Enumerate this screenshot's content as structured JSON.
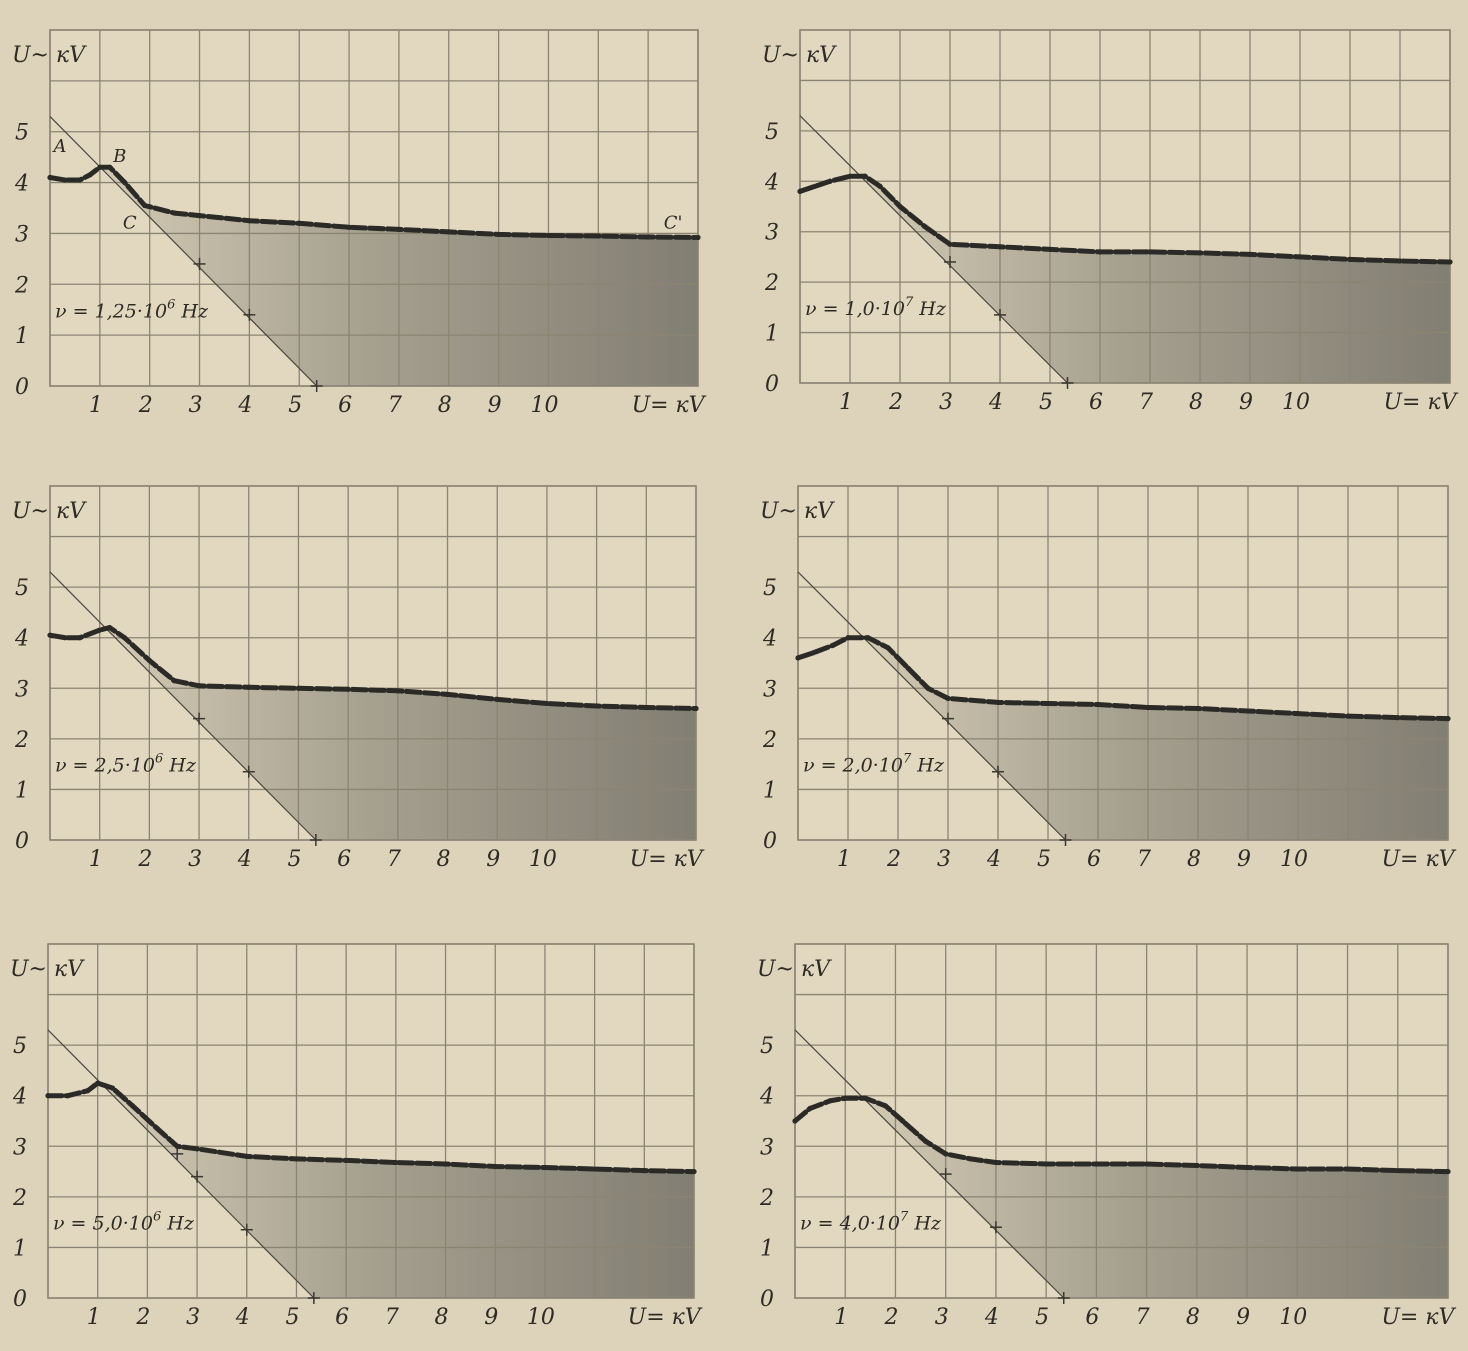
{
  "figure": {
    "colors": {
      "paper": "#ddd3ba",
      "grid": "#8c8473",
      "curve": "#2b2a27",
      "shade": "#5c5b55",
      "ink": "#2e2a24"
    },
    "panels": [
      {
        "freq_prefix": "ν = 1,25·10",
        "freq_exp": "6",
        "freq_unit": " Hz",
        "point_labels": [
          {
            "text": "A",
            "x": 0.2,
            "y": 4.6
          },
          {
            "text": "B",
            "x": 1.4,
            "y": 4.4
          },
          {
            "text": "C",
            "x": 1.6,
            "y": 3.1
          },
          {
            "text": "C'",
            "x": 12.5,
            "y": 3.1
          }
        ]
      },
      {
        "freq_prefix": "ν = 1,0·10",
        "freq_exp": "7",
        "freq_unit": " Hz",
        "point_labels": []
      },
      {
        "freq_prefix": "ν = 2,5·10",
        "freq_exp": "6",
        "freq_unit": " Hz",
        "point_labels": []
      },
      {
        "freq_prefix": "ν = 2,0·10",
        "freq_exp": "7",
        "freq_unit": " Hz",
        "point_labels": []
      },
      {
        "freq_prefix": "ν = 5,0·10",
        "freq_exp": "6",
        "freq_unit": " Hz",
        "point_labels": []
      },
      {
        "freq_prefix": "ν = 4,0·10",
        "freq_exp": "7",
        "freq_unit": " Hz",
        "point_labels": []
      }
    ]
  },
  "chart_data": [
    {
      "type": "line",
      "frequency": "1,25·10^6 Hz",
      "xlabel": "U= кV",
      "ylabel": "U~ кV",
      "xlim": [
        0,
        13
      ],
      "ylim": [
        0,
        7
      ],
      "x_ticks": [
        "1",
        "2",
        "3",
        "4",
        "5",
        "6",
        "7",
        "8",
        "9",
        "10"
      ],
      "y_ticks": [
        "0",
        "1",
        "2",
        "3",
        "4",
        "5"
      ],
      "grid": true,
      "curve": {
        "x": [
          0,
          0.3,
          0.6,
          0.8,
          1,
          1.2,
          1.5,
          1.9,
          2.5,
          3,
          4,
          5,
          6,
          7,
          8,
          9,
          10,
          11,
          12,
          13
        ],
        "y": [
          4.1,
          4.05,
          4.05,
          4.15,
          4.3,
          4.3,
          4.0,
          3.55,
          3.4,
          3.35,
          3.25,
          3.2,
          3.12,
          3.08,
          3.03,
          2.98,
          2.96,
          2.95,
          2.93,
          2.92
        ]
      },
      "load_line": {
        "x": [
          0,
          3,
          4,
          5.35
        ],
        "y": [
          5.3,
          2.4,
          1.4,
          0.0
        ]
      }
    },
    {
      "type": "line",
      "frequency": "1,0·10^7 Hz",
      "xlabel": "U= кV",
      "ylabel": "U~ кV",
      "xlim": [
        0,
        13
      ],
      "ylim": [
        0,
        7
      ],
      "x_ticks": [
        "1",
        "2",
        "3",
        "4",
        "5",
        "6",
        "7",
        "8",
        "9",
        "10"
      ],
      "y_ticks": [
        "0",
        "1",
        "2",
        "3",
        "4",
        "5"
      ],
      "grid": true,
      "curve": {
        "x": [
          0,
          0.3,
          0.6,
          1,
          1.3,
          1.6,
          2,
          2.5,
          3,
          4,
          5,
          6,
          7,
          8,
          9,
          10,
          11,
          12,
          13
        ],
        "y": [
          3.8,
          3.9,
          4.0,
          4.1,
          4.1,
          3.9,
          3.5,
          3.1,
          2.75,
          2.7,
          2.65,
          2.6,
          2.6,
          2.58,
          2.55,
          2.5,
          2.45,
          2.42,
          2.4
        ]
      },
      "load_line": {
        "x": [
          0,
          3,
          4,
          5.35
        ],
        "y": [
          5.3,
          2.4,
          1.35,
          0.0
        ]
      }
    },
    {
      "type": "line",
      "frequency": "2,5·10^6 Hz",
      "xlabel": "U= кV",
      "ylabel": "U~ кV",
      "xlim": [
        0,
        13
      ],
      "ylim": [
        0,
        7
      ],
      "x_ticks": [
        "1",
        "2",
        "3",
        "4",
        "5",
        "6",
        "7",
        "8",
        "9",
        "10"
      ],
      "y_ticks": [
        "0",
        "1",
        "2",
        "3",
        "4",
        "5"
      ],
      "grid": true,
      "curve": {
        "x": [
          0,
          0.3,
          0.6,
          1,
          1.2,
          1.5,
          2,
          2.5,
          3,
          4,
          5,
          6,
          7,
          8,
          9,
          10,
          11,
          12,
          13
        ],
        "y": [
          4.05,
          4.0,
          4.0,
          4.15,
          4.2,
          4.0,
          3.55,
          3.15,
          3.05,
          3.02,
          3.0,
          2.98,
          2.95,
          2.88,
          2.78,
          2.7,
          2.65,
          2.62,
          2.6
        ]
      },
      "load_line": {
        "x": [
          0,
          3,
          4,
          5.35
        ],
        "y": [
          5.3,
          2.4,
          1.35,
          0.0
        ]
      }
    },
    {
      "type": "line",
      "frequency": "2,0·10^7 Hz",
      "xlabel": "U= кV",
      "ylabel": "U~ кV",
      "xlim": [
        0,
        13
      ],
      "ylim": [
        0,
        7
      ],
      "x_ticks": [
        "1",
        "2",
        "3",
        "4",
        "5",
        "6",
        "7",
        "8",
        "9",
        "10"
      ],
      "y_ticks": [
        "0",
        "1",
        "2",
        "3",
        "4",
        "5"
      ],
      "grid": true,
      "curve": {
        "x": [
          0,
          0.3,
          0.7,
          1,
          1.4,
          1.8,
          2.2,
          2.6,
          3,
          4,
          5,
          6,
          7,
          8,
          9,
          10,
          11,
          12,
          13
        ],
        "y": [
          3.6,
          3.7,
          3.85,
          4.0,
          4.0,
          3.8,
          3.4,
          3.0,
          2.8,
          2.72,
          2.7,
          2.68,
          2.62,
          2.6,
          2.55,
          2.5,
          2.45,
          2.42,
          2.4
        ]
      },
      "load_line": {
        "x": [
          0,
          3,
          4,
          5.35
        ],
        "y": [
          5.3,
          2.4,
          1.35,
          0.0
        ]
      }
    },
    {
      "type": "line",
      "frequency": "5,0·10^6 Hz",
      "xlabel": "U= кV",
      "ylabel": "U~ кV",
      "xlim": [
        0,
        13
      ],
      "ylim": [
        0,
        7
      ],
      "x_ticks": [
        "1",
        "2",
        "3",
        "4",
        "5",
        "6",
        "7",
        "8",
        "9",
        "10"
      ],
      "y_ticks": [
        "0",
        "1",
        "2",
        "3",
        "4",
        "5"
      ],
      "grid": true,
      "curve": {
        "x": [
          0,
          0.4,
          0.8,
          1,
          1.3,
          1.7,
          2.2,
          2.6,
          3,
          4,
          5,
          6,
          7,
          8,
          9,
          10,
          11,
          12,
          13
        ],
        "y": [
          4.0,
          4.0,
          4.1,
          4.25,
          4.15,
          3.8,
          3.35,
          3.0,
          2.95,
          2.8,
          2.75,
          2.72,
          2.68,
          2.65,
          2.6,
          2.58,
          2.55,
          2.52,
          2.5
        ]
      },
      "load_line": {
        "x": [
          0,
          2.6,
          3,
          4,
          5.35
        ],
        "y": [
          5.3,
          2.85,
          2.4,
          1.35,
          0.0
        ]
      }
    },
    {
      "type": "line",
      "frequency": "4,0·10^7 Hz",
      "xlabel": "U= кV",
      "ylabel": "U~ кV",
      "xlim": [
        0,
        13
      ],
      "ylim": [
        0,
        7
      ],
      "x_ticks": [
        "1",
        "2",
        "3",
        "4",
        "5",
        "6",
        "7",
        "8",
        "9",
        "10"
      ],
      "y_ticks": [
        "0",
        "1",
        "2",
        "3",
        "4",
        "5"
      ],
      "grid": true,
      "curve": {
        "x": [
          0,
          0.3,
          0.7,
          1,
          1.4,
          1.8,
          2.2,
          2.6,
          3,
          3.5,
          4,
          5,
          6,
          7,
          8,
          9,
          10,
          11,
          12,
          13
        ],
        "y": [
          3.5,
          3.75,
          3.9,
          3.95,
          3.95,
          3.8,
          3.45,
          3.1,
          2.85,
          2.75,
          2.68,
          2.65,
          2.65,
          2.65,
          2.62,
          2.58,
          2.55,
          2.55,
          2.52,
          2.5
        ]
      },
      "load_line": {
        "x": [
          0,
          3,
          4,
          5.35
        ],
        "y": [
          5.3,
          2.45,
          1.4,
          0.0
        ]
      }
    }
  ]
}
